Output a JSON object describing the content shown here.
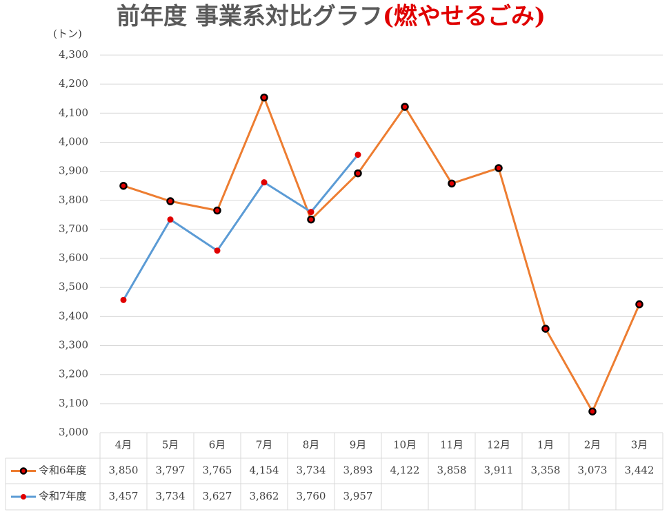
{
  "chart_data": {
    "type": "line",
    "title": [
      "前年度 事業系対比グラフ",
      "(燃やせるごみ)"
    ],
    "title_colors": [
      "#595959",
      "#e00000"
    ],
    "y_label": "(トン)",
    "categories": [
      "4月",
      "5月",
      "6月",
      "7月",
      "8月",
      "9月",
      "10月",
      "11月",
      "12月",
      "1月",
      "2月",
      "3月"
    ],
    "series": [
      {
        "name": "令和6年度",
        "color": "#ed7d31",
        "marker_fill": "#e00000",
        "marker_stroke": "#000000",
        "values": [
          3850,
          3797,
          3765,
          4154,
          3734,
          3893,
          4122,
          3858,
          3911,
          3358,
          3073,
          3442
        ],
        "value_labels": [
          "3,850",
          "3,797",
          "3,765",
          "4,154",
          "3,734",
          "3,893",
          "4,122",
          "3,858",
          "3,911",
          "3,358",
          "3,073",
          "3,442"
        ]
      },
      {
        "name": "令和7年度",
        "color": "#5b9bd5",
        "marker_fill": "#e00000",
        "marker_stroke": "#e00000",
        "values": [
          3457,
          3734,
          3627,
          3862,
          3760,
          3957,
          null,
          null,
          null,
          null,
          null,
          null
        ],
        "value_labels": [
          "3,457",
          "3,734",
          "3,627",
          "3,862",
          "3,760",
          "3,957",
          null,
          null,
          null,
          null,
          null,
          null
        ]
      }
    ],
    "ylim": [
      3000,
      4300
    ],
    "yticks": [
      {
        "value": 3000,
        "label": "3,000"
      },
      {
        "value": 3100,
        "label": "3,100"
      },
      {
        "value": 3200,
        "label": "3,200"
      },
      {
        "value": 3300,
        "label": "3,300"
      },
      {
        "value": 3400,
        "label": "3,400"
      },
      {
        "value": 3500,
        "label": "3,500"
      },
      {
        "value": 3600,
        "label": "3,600"
      },
      {
        "value": 3700,
        "label": "3,700"
      },
      {
        "value": 3800,
        "label": "3,800"
      },
      {
        "value": 3900,
        "label": "3,900"
      },
      {
        "value": 4000,
        "label": "4,000"
      },
      {
        "value": 4100,
        "label": "4,100"
      },
      {
        "value": 4200,
        "label": "4,200"
      },
      {
        "value": 4300,
        "label": "4,300"
      }
    ],
    "grid": true
  }
}
